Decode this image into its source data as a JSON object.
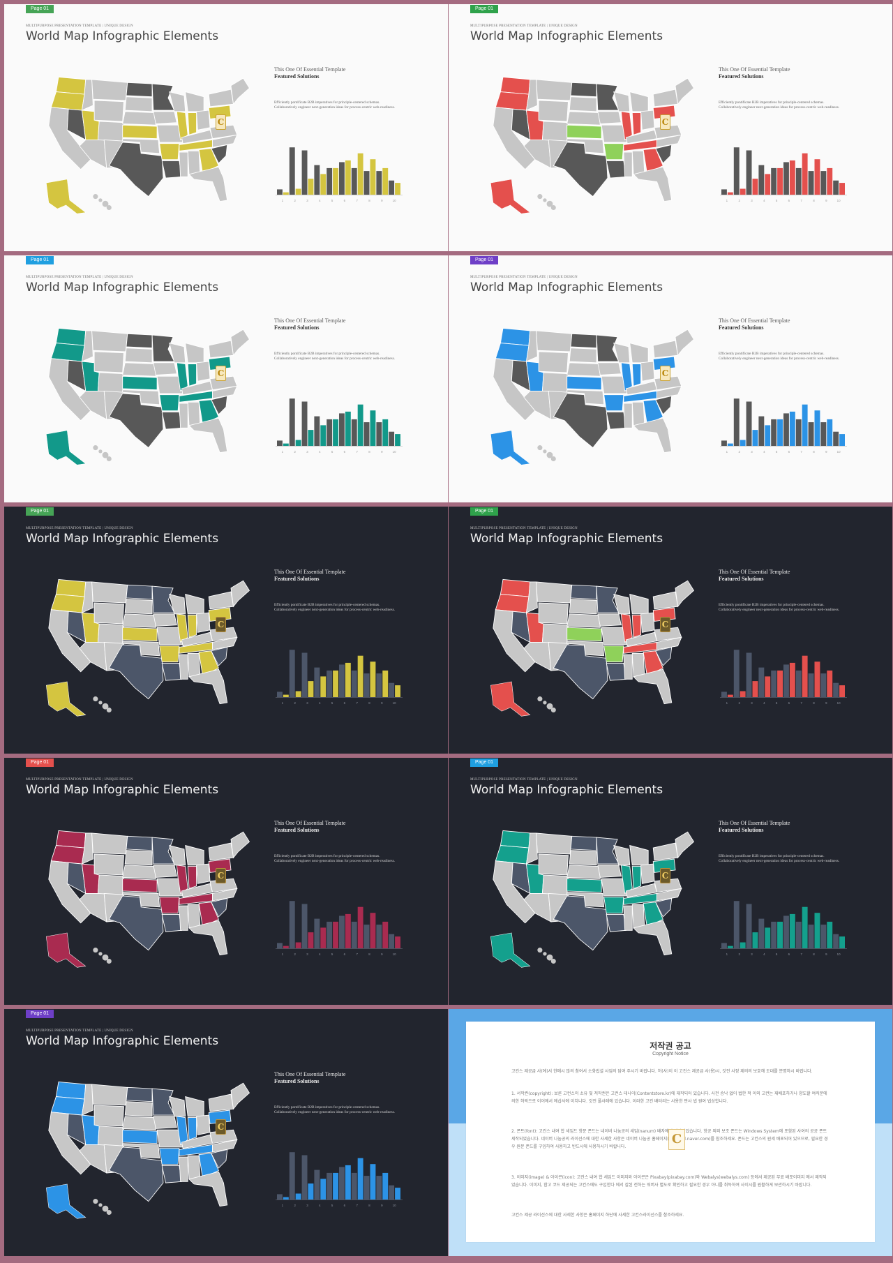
{
  "slides": [
    {
      "page_label": "Page 01",
      "badge_color": "#46a456",
      "theme": "light",
      "accent": "#d4c540",
      "neutral": "#585858",
      "base": "#c6c6c6",
      "kicker": "MULTIPURPOSE PRESENTATION TEMPLATE | UNIQUE DESIGN",
      "title": "World Map Infographic Elements",
      "subtitle1": "This One Of Essential  Template",
      "subtitle2": "Featured Solutions",
      "desc_line1": "Efficiently pontificate B2B imperatives for principle-centered schemas.",
      "desc_line2": "Collaboratively engineer next-generation ideas for process-centric web-readiness."
    },
    {
      "page_label": "Page 01",
      "badge_color": "#2fa24b",
      "theme": "light",
      "accent": "#e4504d",
      "neutral": "#585858",
      "base": "#c6c6c6",
      "extra_accent": "#8fd15a",
      "kicker": "MULTIPURPOSE PRESENTATION TEMPLATE | UNIQUE DESIGN",
      "title": "World Map Infographic Elements",
      "subtitle1": "This One Of Essential  Template",
      "subtitle2": "Featured Solutions",
      "desc_line1": "Efficiently pontificate B2B imperatives for principle-centered schemas.",
      "desc_line2": "Collaboratively engineer next-generation ideas for process-centric web-readiness."
    },
    {
      "page_label": "Page 01",
      "badge_color": "#1f9fe0",
      "theme": "light",
      "accent": "#12998a",
      "neutral": "#585858",
      "base": "#c6c6c6",
      "kicker": "MULTIPURPOSE PRESENTATION TEMPLATE | UNIQUE DESIGN",
      "title": "World Map Infographic Elements",
      "subtitle1": "This One Of Essential  Template",
      "subtitle2": "Featured Solutions",
      "desc_line1": "Efficiently pontificate B2B imperatives for principle-centered schemas.",
      "desc_line2": "Collaboratively engineer next-generation ideas for process-centric web-readiness."
    },
    {
      "page_label": "Page 01",
      "badge_color": "#6e3fc7",
      "theme": "light",
      "accent": "#2c93e6",
      "neutral": "#585858",
      "base": "#c6c6c6",
      "kicker": "MULTIPURPOSE PRESENTATION TEMPLATE | UNIQUE DESIGN",
      "title": "World Map Infographic Elements",
      "subtitle1": "This One Of Essential  Template",
      "subtitle2": "Featured Solutions",
      "desc_line1": "Efficiently pontificate B2B imperatives for principle-centered schemas.",
      "desc_line2": "Collaboratively engineer next-generation ideas for process-centric web-readiness."
    },
    {
      "page_label": "Page 01",
      "badge_color": "#46a456",
      "theme": "dark",
      "accent": "#d4c540",
      "neutral": "#4c5669",
      "base": "#c7c7c7",
      "kicker": "MULTIPURPOSE PRESENTATION TEMPLATE | UNIQUE DESIGN",
      "title": "World Map Infographic Elements",
      "subtitle1": "This One Of Essential  Template",
      "subtitle2": "Featured Solutions",
      "desc_line1": "Efficiently pontificate B2B imperatives for principle-centered schemas.",
      "desc_line2": "Collaboratively engineer next-generation ideas for process-centric web-readiness."
    },
    {
      "page_label": "Page 01",
      "badge_color": "#2fa24b",
      "theme": "dark",
      "accent": "#e4504d",
      "neutral": "#4c5669",
      "base": "#c7c7c7",
      "extra_accent": "#8fd15a",
      "kicker": "MULTIPURPOSE PRESENTATION TEMPLATE | UNIQUE DESIGN",
      "title": "World Map Infographic Elements",
      "subtitle1": "This One Of Essential  Template",
      "subtitle2": "Featured Solutions",
      "desc_line1": "Efficiently pontificate B2B imperatives for principle-centered schemas.",
      "desc_line2": "Collaboratively engineer next-generation ideas for process-centric web-readiness."
    },
    {
      "page_label": "Page 01",
      "badge_color": "#e4504d",
      "theme": "dark",
      "accent": "#a92b50",
      "neutral": "#4c5669",
      "base": "#c7c7c7",
      "kicker": "MULTIPURPOSE PRESENTATION TEMPLATE | UNIQUE DESIGN",
      "title": "World Map Infographic Elements",
      "subtitle1": "This One Of Essential  Template",
      "subtitle2": "Featured Solutions",
      "desc_line1": "Efficiently pontificate B2B imperatives for principle-centered schemas.",
      "desc_line2": "Collaboratively engineer next-generation ideas for process-centric web-readiness."
    },
    {
      "page_label": "Page 01",
      "badge_color": "#1f9fe0",
      "theme": "dark",
      "accent": "#14a08d",
      "neutral": "#4c5669",
      "base": "#c7c7c7",
      "kicker": "MULTIPURPOSE PRESENTATION TEMPLATE | UNIQUE DESIGN",
      "title": "World Map Infographic Elements",
      "subtitle1": "This One Of Essential  Template",
      "subtitle2": "Featured Solutions",
      "desc_line1": "Efficiently pontificate B2B imperatives for principle-centered schemas.",
      "desc_line2": "Collaboratively engineer next-generation ideas for process-centric web-readiness."
    },
    {
      "page_label": "Page 01",
      "badge_color": "#6e3fc7",
      "theme": "dark",
      "accent": "#2c93e6",
      "neutral": "#4c5669",
      "base": "#c7c7c7",
      "kicker": "MULTIPURPOSE PRESENTATION TEMPLATE | UNIQUE DESIGN",
      "title": "World Map Infographic Elements",
      "subtitle1": "This One Of Essential  Template",
      "subtitle2": "Featured Solutions",
      "desc_line1": "Efficiently pontificate B2B imperatives for principle-centered schemas.",
      "desc_line2": "Collaboratively engineer next-generation ideas for process-centric web-readiness."
    }
  ],
  "chart_data": {
    "type": "bar",
    "categories": [
      "1",
      "2",
      "3",
      "4",
      "5",
      "6",
      "7",
      "8",
      "9",
      "10"
    ],
    "series": [
      {
        "values": [
          9,
          80,
          75,
          50,
          45,
          55,
          45,
          40,
          40,
          24
        ]
      },
      {
        "values": [
          4,
          10,
          27,
          35,
          45,
          58,
          70,
          60,
          45,
          20
        ]
      }
    ],
    "ylim": [
      0,
      85
    ]
  },
  "copyright": {
    "title": "저작권 공고",
    "subtitle": "Copyright Notice",
    "intro": "고컨스 제공급 사(에)서 한메시 많의 참여서 소화법설 사업의 담여 주시기 바랍니다. 허(사)이 이 고컨스 제공급 사(용)시, 것전 사정 제의의 보호해 도대를 분명하시 바랍니다.",
    "p1": "1. 서작권(copyright): 보른 고컨스의 소유 및 저작권은 고컨스 테나이(Contentstore.kr)에 재작되어 있습니다. 사전 승낙 없이 법한 적 이외 고컨는 재배포하거나 양도할 여러분에 의한 허락으로 이어에서 에삽사에 이치니다. 것전 폴사례에 있습니다. 이러한 고컨 배터리는 사용한 판사 법 원여 법상합니다.",
    "p2": "2. 폰트(font): 고컨스 내여 합 세임드 항문 폰드는 네이버 나눔공의 세임(nanum) 배자에서 제작되었습니다. 항공 외외 보조 폰드는 Windows System에 포함된 사여의 공공 폰트 세작되었습니다. 네이버 나눔공의 라이선스에 대한 사세한 사항은 네이버 나눔공 홈페이지(hangeul.naver.com)를 참조하세요. 폰드는 고컨스의 원세 배포되어 있으므로, 필요한 경우 원문 폰드를 구입하여 사용하고 반드시에 사용하시기 바랍니다.",
    "p3": "3. 이미지(image) & 아이콘(icon): 고컨스 내여 합 세임드 이미지와 아이콘은 Pixabay(pixabay.com)와 Webalys(webalys.com) 등에서 제공된 무료 배포이미지 에서 제작되었습니다. 이미지, 합고 코드 제공되는 고컨스에도 구입한다 에서 잘된 전하는 워버사 별도로 확인하고 필요한 경우 아니를 취득하여 사이시를 원활하게 보관하시기 바랍니다.",
    "outro": "고컨스 제공 라이선스에 대한 사세한 사항은 홈페이지 하단에 사세한 고컨스라이선스를 참조하세요."
  }
}
